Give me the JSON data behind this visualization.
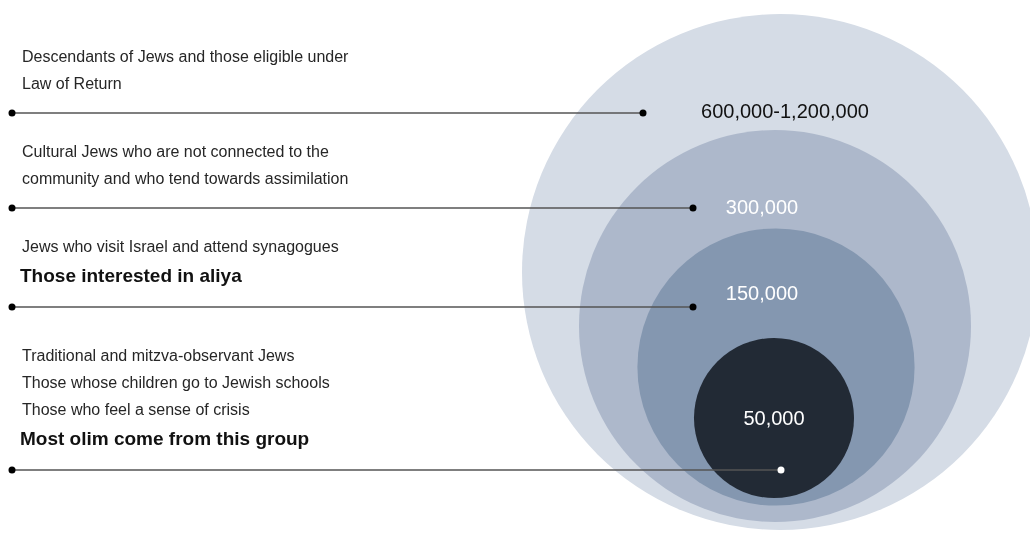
{
  "chart_data": {
    "type": "other",
    "categories": [
      "Descendants of Jews and those eligible under\nLaw of Return",
      "Cultural Jews who are not connected to the\ncommunity and who tend towards assimilation",
      "Jews who visit Israel and attend synagogues",
      "Traditional and mitzva-observant Jews\nThose whose children go to Jewish schools\nThose who feel a sense of crisis"
    ],
    "values": [
      null,
      300000,
      150000,
      50000
    ],
    "value_labels": [
      "600,000-1,200,000",
      "300,000",
      "150,000",
      "50,000"
    ],
    "colors": [
      "#d5dce6",
      "#adb8cb",
      "#8497b0",
      "#222a35"
    ],
    "annotations": [
      "Those interested in aliya",
      "Most olim come from this group"
    ]
  }
}
